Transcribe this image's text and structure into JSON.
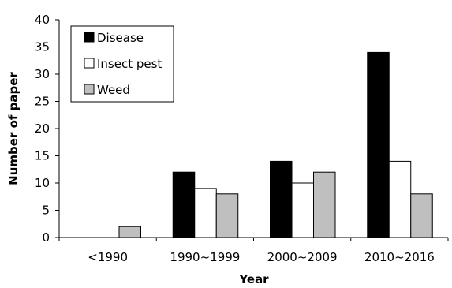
{
  "chart_data": {
    "type": "bar",
    "title": "",
    "xlabel": "Year",
    "ylabel": "Number  of paper",
    "categories": [
      "<1990",
      "1990~1999",
      "2000~2009",
      "2010~2016"
    ],
    "series": [
      {
        "name": "Disease",
        "values": [
          0,
          12,
          14,
          34
        ],
        "color": "#000000"
      },
      {
        "name": "Insect pest",
        "values": [
          0,
          9,
          10,
          14
        ],
        "color": "#ffffff"
      },
      {
        "name": "Weed",
        "values": [
          2,
          8,
          12,
          8
        ],
        "color": "#bfbfbf"
      }
    ],
    "ylim": [
      0,
      40
    ],
    "yticks": [
      0,
      5,
      10,
      15,
      20,
      25,
      30,
      35,
      40
    ],
    "grid": false,
    "legend_position": "top-left"
  }
}
